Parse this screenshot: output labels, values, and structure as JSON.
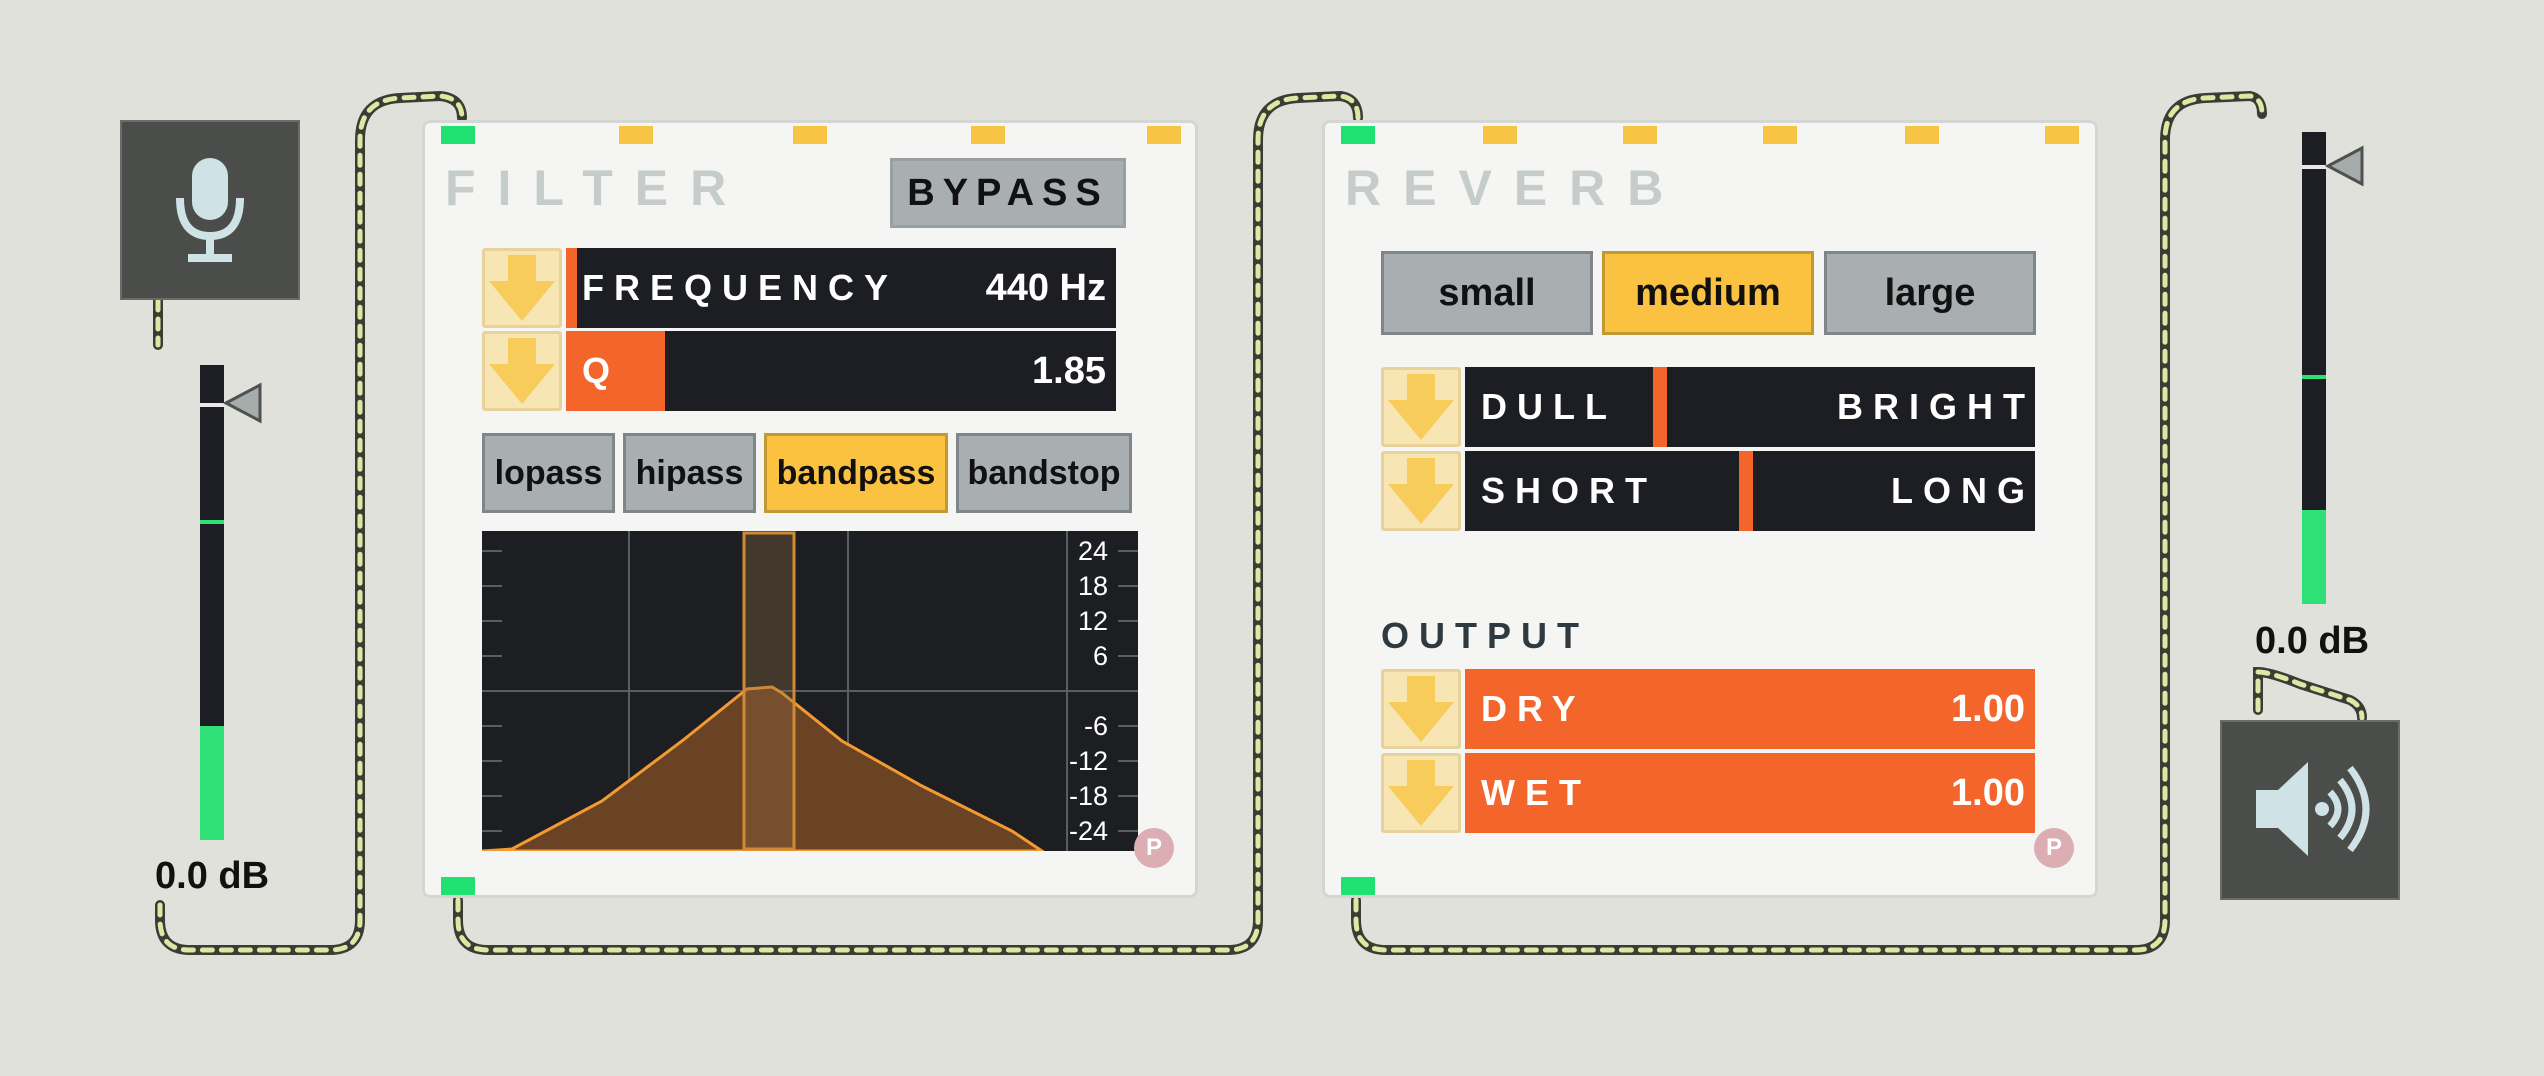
{
  "input": {
    "icon": "microphone-icon",
    "meter_db": "0.0 dB",
    "meter_level": 0.24
  },
  "output": {
    "icon": "speaker-icon",
    "meter_db": "0.0 dB",
    "meter_level": 0.2
  },
  "filter": {
    "title": "FILTER",
    "bypass_label": "BYPASS",
    "frequency": {
      "label": "FREQUENCY",
      "value": "440 Hz",
      "level": 0.02
    },
    "q": {
      "label": "Q",
      "value": "1.85",
      "level": 0.18
    },
    "types": [
      "lopass",
      "hipass",
      "bandpass",
      "bandstop"
    ],
    "selected_type": "bandpass",
    "graph": {
      "db_labels": [
        "24",
        "18",
        "12",
        "6",
        "-6",
        "-12",
        "-18",
        "-24"
      ],
      "fill_color": "#6a4325",
      "line_color": "#f39a32"
    },
    "presets_button": "P"
  },
  "reverb": {
    "title": "REVERB",
    "sizes": [
      "small",
      "medium",
      "large"
    ],
    "selected_size": "medium",
    "tone": {
      "left_label": "DULL",
      "right_label": "BRIGHT",
      "level": 0.33
    },
    "decay": {
      "left_label": "SHORT",
      "right_label": "LONG",
      "level": 0.48
    },
    "output_heading": "OUTPUT",
    "dry": {
      "label": "DRY",
      "value": "1.00"
    },
    "wet": {
      "label": "WET",
      "value": "1.00"
    },
    "presets_button": "P"
  },
  "colors": {
    "accent": "#f3652b",
    "selected": "#fbc140",
    "port_green": "#22e173",
    "port_yellow": "#f7c444"
  }
}
